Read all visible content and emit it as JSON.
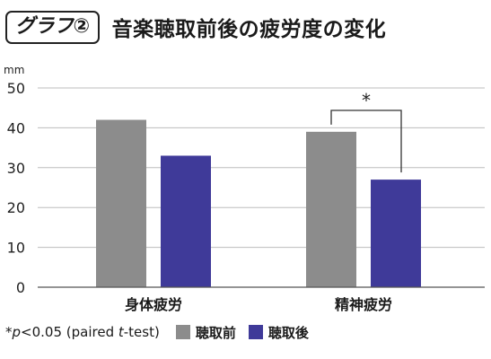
{
  "header": {
    "badge": "グラフ②",
    "title": "音楽聴取前後の疲労度の変化"
  },
  "chart_data": {
    "type": "bar",
    "unit": "mm",
    "categories": [
      "身体疲労",
      "精神疲労"
    ],
    "series": [
      {
        "name": "聴取前",
        "values": [
          42,
          39
        ],
        "color": "#8c8c8c"
      },
      {
        "name": "聴取後",
        "values": [
          33,
          27
        ],
        "color": "#3f3a99"
      }
    ],
    "ylim": [
      0,
      50
    ],
    "yticks": [
      "0",
      "10",
      "20",
      "30",
      "40",
      "50"
    ],
    "grid": true,
    "significance": {
      "category_index": 1,
      "label": "*"
    },
    "footnote": "*p<0.05 (paired t-test)"
  }
}
